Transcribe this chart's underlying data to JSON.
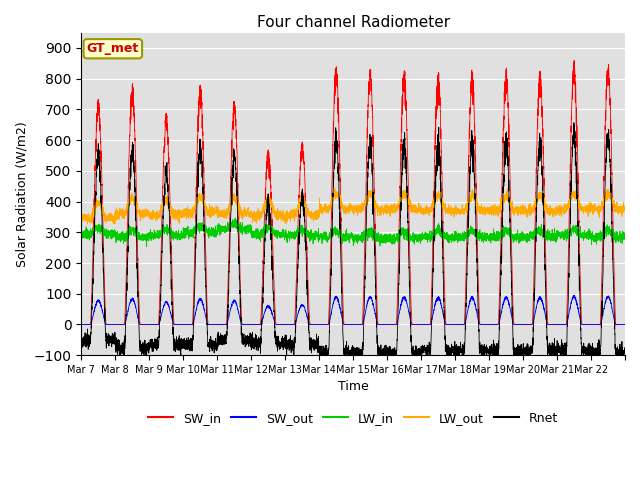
{
  "title": "Four channel Radiometer",
  "xlabel": "Time",
  "ylabel": "Solar Radiation (W/m2)",
  "ylim": [
    -100,
    950
  ],
  "yticks": [
    -100,
    0,
    100,
    200,
    300,
    400,
    500,
    600,
    700,
    800,
    900
  ],
  "background_color": "#e0e0e0",
  "legend_label_box": "GT_met",
  "colors": {
    "SW_in": "#ff0000",
    "SW_out": "#0000ff",
    "LW_in": "#00cc00",
    "LW_out": "#ffaa00",
    "Rnet": "#000000"
  },
  "xtick_labels": [
    "Mar 7",
    "Mar 8",
    "Mar 9",
    "Mar 10",
    "Mar 11",
    "Mar 12",
    "Mar 13",
    "Mar 14",
    "Mar 15",
    "Mar 16",
    "Mar 17",
    "Mar 18",
    "Mar 19",
    "Mar 20",
    "Mar 21",
    "Mar 22"
  ],
  "num_days": 16,
  "points_per_day": 288,
  "day_start": 7
}
